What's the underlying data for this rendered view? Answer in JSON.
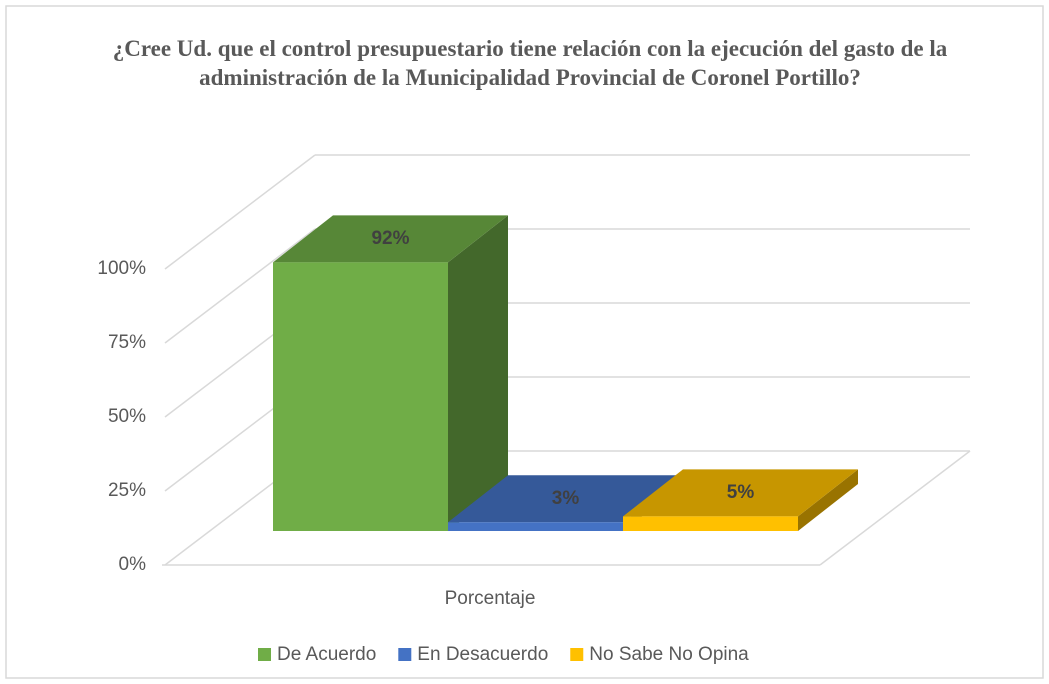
{
  "chart_data": {
    "type": "bar3d",
    "title": "¿Cree Ud. que el  control presupuestario tiene relación con la ejecución del gasto de la administración de la Municipalidad Provincial de Coronel Portillo?",
    "categories": [
      "Porcentaje"
    ],
    "series": [
      {
        "name": "De Acuerdo",
        "color": "#70ad47",
        "values": [
          92
        ],
        "value_labels": [
          "92%"
        ]
      },
      {
        "name": "En Desacuerdo",
        "color": "#4472c4",
        "values": [
          3
        ],
        "value_labels": [
          "3%"
        ]
      },
      {
        "name": "No Sabe No Opina",
        "color": "#ffc000",
        "values": [
          5
        ],
        "value_labels": [
          "5%"
        ]
      }
    ],
    "ylim": [
      0,
      100
    ],
    "yticks": [
      {
        "value": 0,
        "label": "0%"
      },
      {
        "value": 25,
        "label": "25%"
      },
      {
        "value": 50,
        "label": "50%"
      },
      {
        "value": 75,
        "label": "75%"
      },
      {
        "value": 100,
        "label": "100%"
      }
    ],
    "grid": true,
    "legend": "bottom"
  }
}
